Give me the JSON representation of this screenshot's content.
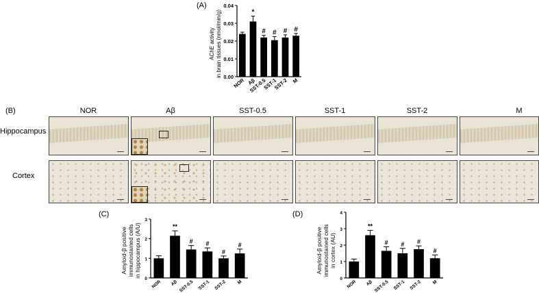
{
  "panels": {
    "A": "(A)",
    "B": "(B)",
    "C": "(C)",
    "D": "(D)"
  },
  "micrographs": {
    "columns": [
      "NOR",
      "Aβ",
      "SST-0.5",
      "SST-1",
      "SST-2",
      "M"
    ],
    "rows": [
      "Hippocampus",
      "Cortex"
    ]
  },
  "colors": {
    "bar": "#000000",
    "axis": "#000000",
    "tissue_hippo": "#e9e4d6",
    "tissue_cortex": "#ebe6d9"
  },
  "chart_data": [
    {
      "id": "A",
      "type": "bar",
      "categories": [
        "NOR",
        "Aβ",
        "SST-0.5",
        "SST-1",
        "SST-2",
        "M"
      ],
      "values": [
        0.024,
        0.031,
        0.022,
        0.0205,
        0.022,
        0.023
      ],
      "errors": [
        0.001,
        0.003,
        0.0012,
        0.002,
        0.0015,
        0.0013
      ],
      "annotations": [
        "",
        "*",
        "#",
        "#",
        "#",
        "#"
      ],
      "ylabel_line1": "AChE activity",
      "ylabel_line2": "in brain tissues (nmol/min/g)",
      "ylim": [
        0,
        0.04
      ],
      "yticks": [
        "0.00",
        "0.01",
        "0.02",
        "0.03",
        "0.04"
      ]
    },
    {
      "id": "C",
      "type": "bar",
      "categories": [
        "NOR",
        "Aβ",
        "SST-0.5",
        "SST-1",
        "SST-2",
        "M"
      ],
      "values": [
        1.0,
        2.15,
        1.45,
        1.35,
        1.0,
        1.25
      ],
      "errors": [
        0.13,
        0.25,
        0.2,
        0.18,
        0.12,
        0.22
      ],
      "annotations": [
        "",
        "**",
        "#",
        "#",
        "#",
        "#"
      ],
      "ylabel_line1": "Amyloid-β positive",
      "ylabel_line2": "immunostained cells",
      "ylabel_line3": "in hippocampus (A/U)",
      "ylim": [
        0,
        3
      ],
      "yticks": [
        "0",
        "1",
        "2",
        "3"
      ]
    },
    {
      "id": "D",
      "type": "bar",
      "categories": [
        "NOR",
        "Aβ",
        "SST-0.5",
        "SST-1",
        "SST-2",
        "M"
      ],
      "values": [
        1.0,
        2.6,
        1.65,
        1.5,
        1.75,
        1.2
      ],
      "errors": [
        0.15,
        0.3,
        0.25,
        0.3,
        0.2,
        0.2
      ],
      "annotations": [
        "",
        "**",
        "#",
        "#",
        "#",
        "#"
      ],
      "ylabel_line1": "Amyloid-β positive",
      "ylabel_line2": "immunostained cells",
      "ylabel_line3": "in cortex (AU)",
      "ylim": [
        0,
        4
      ],
      "yticks": [
        "0",
        "1",
        "2",
        "3",
        "4"
      ]
    }
  ]
}
